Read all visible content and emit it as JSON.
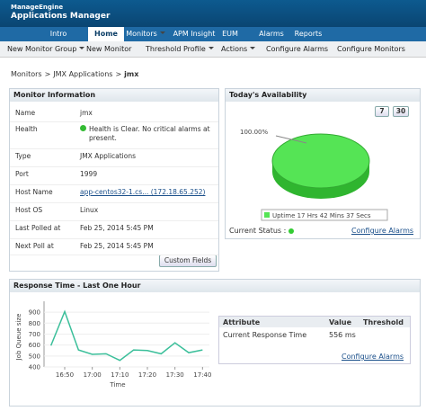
{
  "header": {
    "brand": "ManageEngine",
    "product": "Applications Manager"
  },
  "tabs": [
    "Intro",
    "Home",
    "Monitors",
    "APM Insight",
    "EUM",
    "Alarms",
    "Reports"
  ],
  "subnav": [
    "New Monitor Group",
    "New Monitor",
    "Threshold Profile",
    "Actions",
    "Configure Alarms",
    "Configure Monitors"
  ],
  "breadcrumb": {
    "items": [
      "Monitors",
      "JMX Applications",
      "jmx"
    ],
    "separator": ">"
  },
  "monitor_info": {
    "title": "Monitor Information",
    "rows": [
      [
        "Name",
        "jmx"
      ],
      [
        "Health",
        "Health is Clear. No critical alarms at present."
      ],
      [
        "Type",
        "JMX Applications"
      ],
      [
        "Port",
        "1999"
      ],
      [
        "Host Name",
        "app-centos32-1.cs... (172.18.65.252)"
      ],
      [
        "Host OS",
        "Linux"
      ],
      [
        "Last Polled at",
        "Feb 25, 2014 5:45 PM"
      ],
      [
        "Next Poll at",
        "Feb 25, 2014 5:45 PM"
      ]
    ],
    "button": "Custom Fields"
  },
  "availability": {
    "title": "Today's Availability",
    "buttons": [
      "7",
      "30"
    ],
    "current_status": "Current Status :",
    "configure": "Configure Alarms",
    "chart_data": {
      "type": "pie",
      "categories": [
        "Uptime 17 Hrs 42 Mins 37 Secs"
      ],
      "values": [
        100
      ],
      "value_labels": [
        "100.00%"
      ],
      "colors": [
        "#55e455"
      ]
    }
  },
  "response_time": {
    "title": "Response Time - Last One Hour",
    "chart_data": {
      "type": "line",
      "y_label": "Job Queue size",
      "x_label": "Time",
      "categories": [
        null,
        "16:50",
        null,
        "17:00",
        null,
        "17:10",
        null,
        "17:20",
        null,
        "17:30",
        null,
        "17:40"
      ],
      "series": [
        {
          "name": "Response Time",
          "color": "#3bbf9a",
          "values": [
            595,
            905,
            555,
            515,
            520,
            460,
            555,
            550,
            520,
            620,
            530,
            555
          ]
        }
      ],
      "ylim": [
        400,
        950
      ],
      "yticks": [
        400,
        500,
        600,
        700,
        800,
        900
      ],
      "grid": true
    },
    "table": {
      "headers": [
        "Attribute",
        "Value",
        "Threshold"
      ],
      "rows": [
        [
          "Current Response Time",
          "556 ms"
        ]
      ],
      "configure": "Configure Alarms"
    }
  }
}
